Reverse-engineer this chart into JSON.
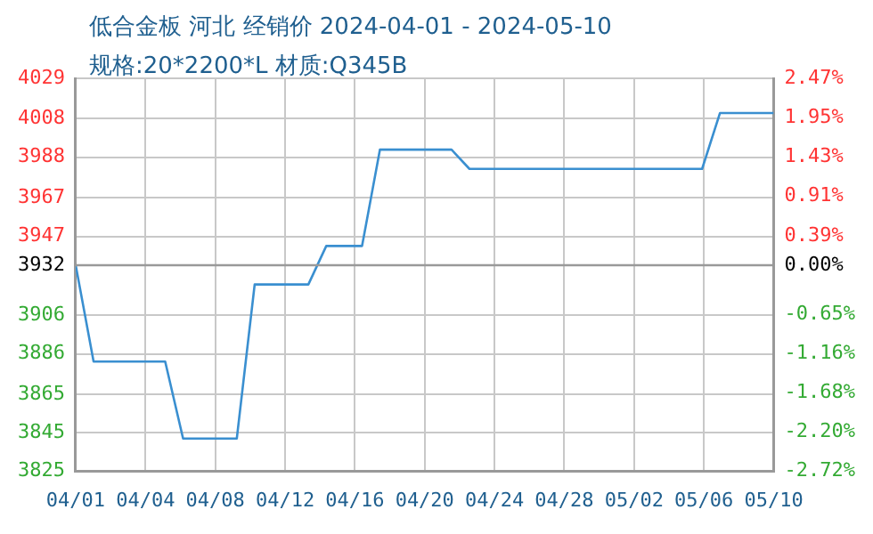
{
  "chart_data": {
    "type": "line",
    "title": "低合金板 河北 经销价 2024-04-01 - 2024-05-10",
    "subtitle": "规格:20*2200*L 材质:Q345B",
    "x": [
      "2024-04-01",
      "2024-04-02",
      "2024-04-06",
      "2024-04-07",
      "2024-04-10",
      "2024-04-11",
      "2024-04-14",
      "2024-04-15",
      "2024-04-17",
      "2024-04-18",
      "2024-04-22",
      "2024-04-23",
      "2024-05-06",
      "2024-05-07",
      "2024-05-10"
    ],
    "series": [
      {
        "color": "#3a8fd0",
        "values": [
          3932,
          3882,
          3882,
          3842,
          3842,
          3922,
          3922,
          3942,
          3942,
          3992,
          3992,
          3982,
          3982,
          4011,
          4011
        ]
      }
    ],
    "xlim": [
      "2024-04-01",
      "2024-05-10"
    ],
    "xticks": [
      {
        "value": "2024-04-01",
        "label": "04/01"
      },
      {
        "value": "2024-04-04T21:36",
        "label": "04/04"
      },
      {
        "value": "2024-04-08T19:12",
        "label": "04/08"
      },
      {
        "value": "2024-04-12T16:48",
        "label": "04/12"
      },
      {
        "value": "2024-04-16T14:24",
        "label": "04/16"
      },
      {
        "value": "2024-04-20T12:00",
        "label": "04/20"
      },
      {
        "value": "2024-04-24T09:36",
        "label": "04/24"
      },
      {
        "value": "2024-04-28T07:12",
        "label": "04/28"
      },
      {
        "value": "2024-05-02T04:48",
        "label": "05/02"
      },
      {
        "value": "2024-05-06T02:24",
        "label": "05/06"
      },
      {
        "value": "2024-05-10",
        "label": "05/10"
      }
    ],
    "ylim": [
      3825,
      4029
    ],
    "yticks": [
      3825,
      3845,
      3865,
      3886,
      3906,
      3932,
      3947,
      3967,
      3988,
      4008,
      4029
    ],
    "y2lim": [
      -2.72,
      2.47
    ],
    "y2ticks": [
      {
        "value": -2.72,
        "label": "-2.72%"
      },
      {
        "value": -2.2,
        "label": "-2.20%"
      },
      {
        "value": -1.68,
        "label": "-1.68%"
      },
      {
        "value": -1.16,
        "label": "-1.16%"
      },
      {
        "value": -0.65,
        "label": "-0.65%"
      },
      {
        "value": 0,
        "label": "0.00%"
      },
      {
        "value": 0.39,
        "label": "0.39%"
      },
      {
        "value": 0.91,
        "label": "0.91%"
      },
      {
        "value": 1.43,
        "label": "1.43%"
      },
      {
        "value": 1.95,
        "label": "1.95%"
      },
      {
        "value": 2.47,
        "label": "2.47%"
      }
    ],
    "ref_lines": [
      {
        "axis": "y",
        "value": 3932,
        "color": "#999999"
      }
    ],
    "grid": true,
    "legend": false,
    "marker": "none"
  }
}
